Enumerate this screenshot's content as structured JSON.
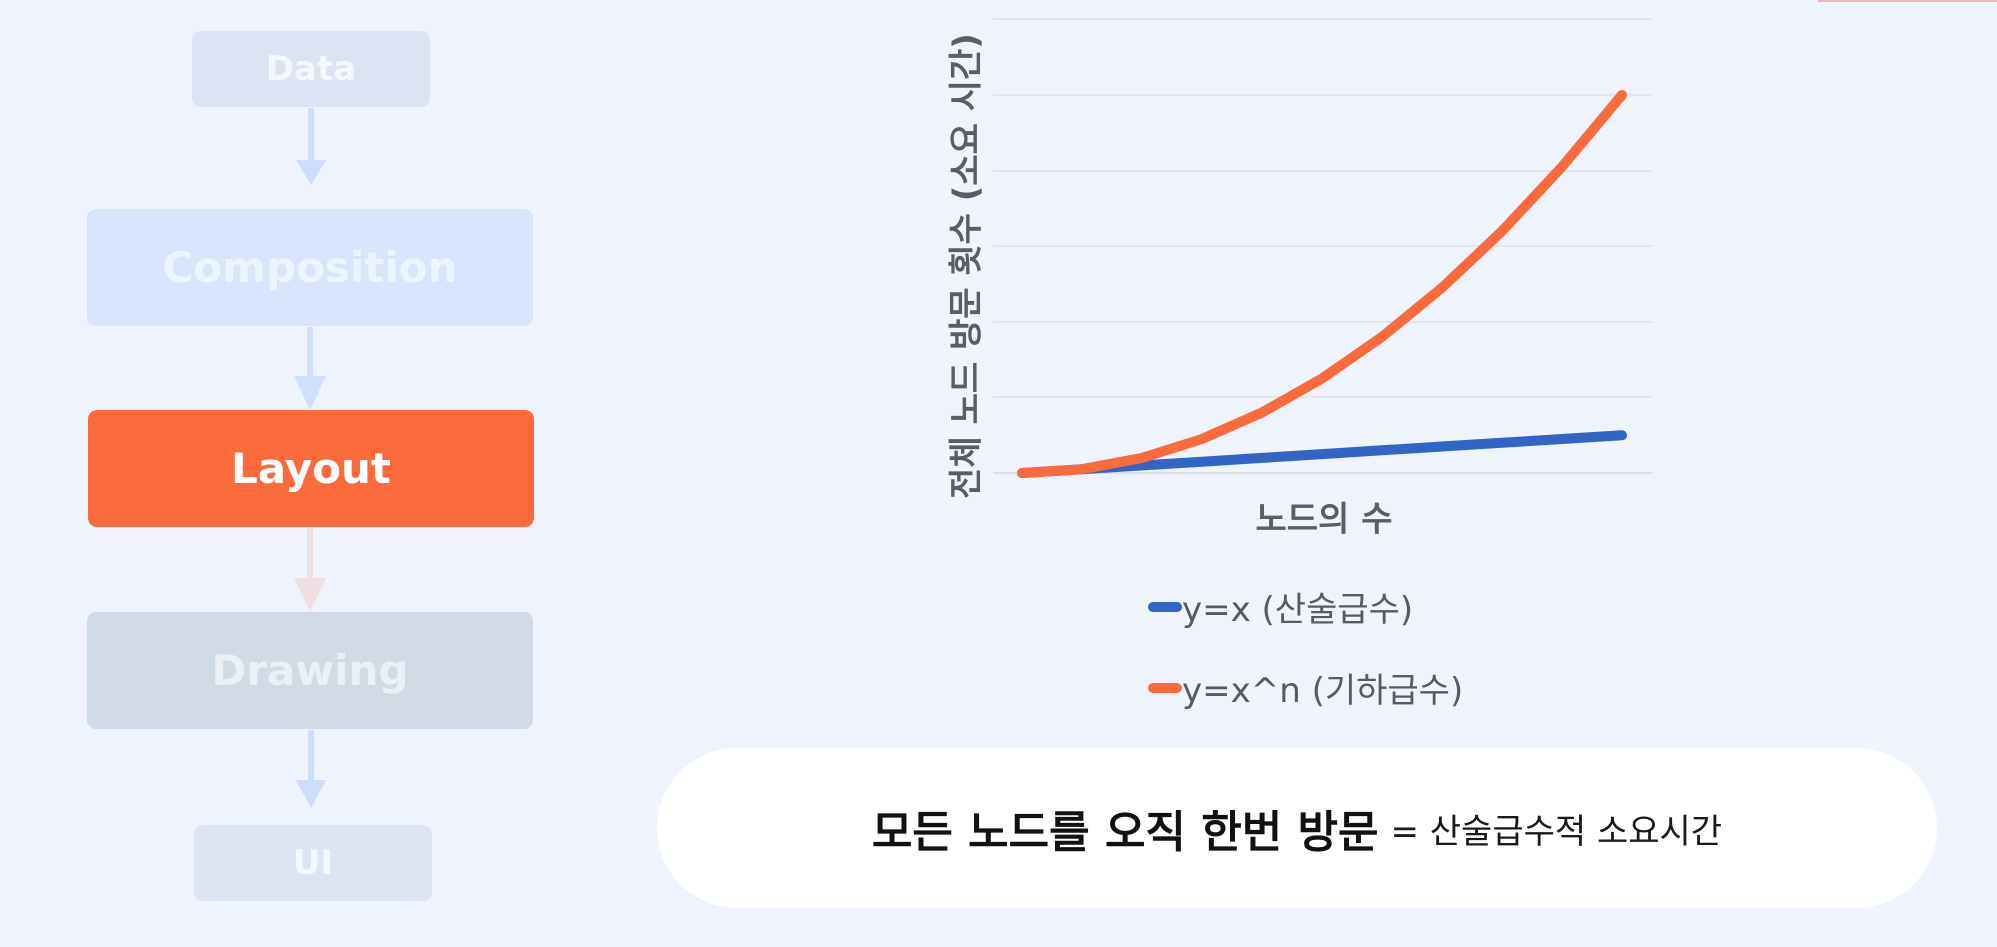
{
  "pipeline": {
    "stages": [
      "Data",
      "Composition",
      "Layout",
      "Drawing",
      "UI"
    ],
    "active_stage": "Layout",
    "colors": {
      "active": "#fb6a3a"
    }
  },
  "chart_data": {
    "type": "line",
    "xlabel": "노드의 수",
    "ylabel": "전체 노드 방문 횟수 (소요 시간)",
    "grid": true,
    "tick_labels_shown": false,
    "series": [
      {
        "name": "y=x (산술급수)",
        "color": "#3064c7",
        "x": [
          0,
          1,
          2,
          3,
          4,
          5,
          6,
          7,
          8,
          9,
          10
        ],
        "y": [
          0,
          1,
          2,
          3,
          4,
          5,
          6,
          7,
          8,
          9,
          10
        ]
      },
      {
        "name": "y=x^n (기하급수)",
        "color": "#fb6a3a",
        "x": [
          0,
          1,
          2,
          3,
          4,
          5,
          6,
          7,
          8,
          9,
          10
        ],
        "y": [
          0,
          1,
          4,
          9,
          16,
          25,
          36,
          49,
          64,
          81,
          100
        ]
      }
    ],
    "xlim": [
      0,
      10
    ],
    "ylim": [
      0,
      100
    ],
    "legend": "bottom"
  },
  "statement": {
    "strong": "모든 노드를 오직 한번 방문",
    "rest": "= 산술급수적 소요시간"
  }
}
